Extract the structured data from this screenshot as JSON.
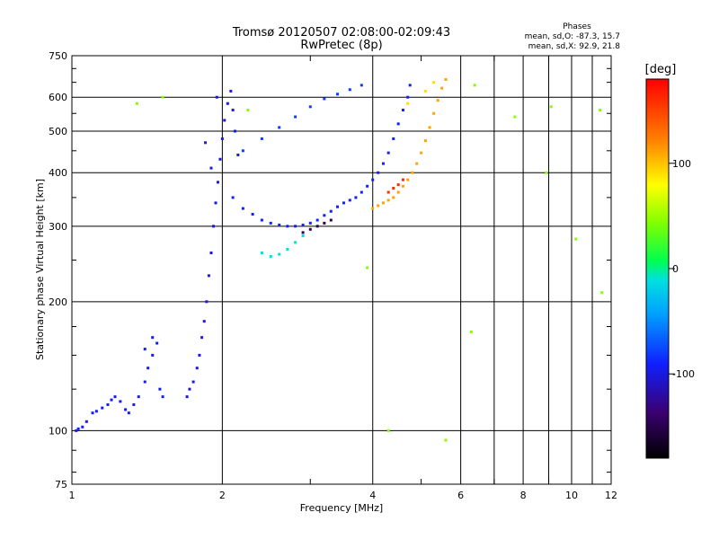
{
  "chart_data": {
    "type": "scatter",
    "title": "Tromsø 20120507 02:08:00-02:09:43",
    "subtitle": "RwPretec (8p)",
    "xlabel": "Frequency [MHz]",
    "ylabel": "Stationary phase Virtual Height [km]",
    "x_scale": "log",
    "y_scale": "log",
    "xlim": [
      1,
      12
    ],
    "ylim": [
      75,
      750
    ],
    "x_ticks": [
      1,
      2,
      4,
      6,
      8,
      10,
      12
    ],
    "x_tick_labels": [
      "1",
      "2",
      "4",
      "6",
      "8",
      "10",
      "12"
    ],
    "y_ticks": [
      75,
      100,
      200,
      300,
      400,
      500,
      600,
      750
    ],
    "y_tick_labels": [
      "75",
      "100",
      "200",
      "300",
      "400",
      "500",
      "600",
      "750"
    ],
    "grid": true,
    "stats": {
      "heading": "Phases",
      "line_O": "mean, sd,O: -87.3, 15.7",
      "line_X": "mean, sd,X: 92.9, 21.8"
    },
    "colorbar": {
      "label": "[deg]",
      "min": -180,
      "max": 180,
      "ticks": [
        100,
        0,
        -100
      ],
      "tick_labels": [
        "100",
        "0",
        "-100"
      ]
    },
    "series": [
      {
        "points": [
          [
            1.02,
            100
          ],
          [
            1.03,
            101
          ],
          [
            1.05,
            102
          ],
          [
            1.07,
            105
          ],
          [
            1.1,
            110
          ],
          [
            1.12,
            111
          ],
          [
            1.15,
            113
          ],
          [
            1.18,
            115
          ],
          [
            1.2,
            118
          ],
          [
            1.22,
            120
          ],
          [
            1.25,
            117
          ],
          [
            1.28,
            112
          ],
          [
            1.3,
            110
          ],
          [
            1.33,
            115
          ],
          [
            1.36,
            120
          ],
          [
            1.4,
            130
          ],
          [
            1.42,
            140
          ],
          [
            1.45,
            150
          ],
          [
            1.48,
            160
          ],
          [
            1.45,
            165
          ],
          [
            1.4,
            155
          ],
          [
            1.5,
            125
          ],
          [
            1.52,
            120
          ]
        ],
        "phase": -95
      },
      {
        "points": [
          [
            1.7,
            120
          ],
          [
            1.72,
            125
          ],
          [
            1.75,
            130
          ],
          [
            1.78,
            140
          ],
          [
            1.8,
            150
          ],
          [
            1.82,
            165
          ],
          [
            1.84,
            180
          ],
          [
            1.86,
            200
          ],
          [
            1.88,
            230
          ],
          [
            1.9,
            260
          ],
          [
            1.92,
            300
          ],
          [
            1.94,
            340
          ],
          [
            1.96,
            380
          ],
          [
            1.98,
            430
          ],
          [
            2.0,
            480
          ],
          [
            2.02,
            530
          ],
          [
            2.05,
            580
          ],
          [
            2.08,
            620
          ],
          [
            2.1,
            560
          ],
          [
            2.12,
            500
          ],
          [
            2.15,
            440
          ],
          [
            1.95,
            600
          ],
          [
            1.85,
            470
          ],
          [
            1.9,
            410
          ]
        ],
        "phase": -100
      },
      {
        "points": [
          [
            2.1,
            350
          ],
          [
            2.2,
            330
          ],
          [
            2.3,
            320
          ],
          [
            2.4,
            310
          ],
          [
            2.5,
            305
          ],
          [
            2.6,
            302
          ],
          [
            2.7,
            300
          ],
          [
            2.8,
            300
          ],
          [
            2.9,
            302
          ],
          [
            3.0,
            305
          ],
          [
            3.1,
            310
          ],
          [
            3.2,
            318
          ],
          [
            3.3,
            325
          ],
          [
            3.4,
            333
          ],
          [
            3.5,
            340
          ],
          [
            3.6,
            345
          ],
          [
            3.7,
            350
          ],
          [
            3.8,
            360
          ],
          [
            3.9,
            372
          ],
          [
            4.0,
            385
          ],
          [
            4.1,
            400
          ],
          [
            4.2,
            420
          ],
          [
            4.3,
            445
          ],
          [
            4.4,
            480
          ],
          [
            4.5,
            520
          ],
          [
            4.6,
            560
          ],
          [
            4.7,
            600
          ],
          [
            4.75,
            640
          ]
        ],
        "phase": -90
      },
      {
        "points": [
          [
            2.4,
            260
          ],
          [
            2.5,
            255
          ],
          [
            2.6,
            258
          ],
          [
            2.7,
            265
          ],
          [
            2.8,
            275
          ],
          [
            2.9,
            285
          ]
        ],
        "phase": -10
      },
      {
        "points": [
          [
            2.2,
            450
          ],
          [
            2.4,
            480
          ],
          [
            2.6,
            510
          ],
          [
            2.8,
            540
          ],
          [
            3.0,
            570
          ],
          [
            3.2,
            595
          ],
          [
            3.4,
            610
          ],
          [
            3.6,
            625
          ],
          [
            3.8,
            640
          ]
        ],
        "phase": -80
      },
      {
        "points": [
          [
            2.9,
            290
          ],
          [
            3.0,
            295
          ],
          [
            3.1,
            300
          ],
          [
            3.2,
            305
          ],
          [
            3.3,
            310
          ]
        ],
        "phase": -150
      },
      {
        "points": [
          [
            4.0,
            330
          ],
          [
            4.1,
            335
          ],
          [
            4.2,
            340
          ],
          [
            4.3,
            345
          ],
          [
            4.4,
            350
          ],
          [
            4.5,
            360
          ],
          [
            4.6,
            372
          ],
          [
            4.7,
            385
          ],
          [
            4.8,
            400
          ],
          [
            4.9,
            420
          ],
          [
            5.0,
            445
          ],
          [
            5.1,
            475
          ],
          [
            5.2,
            510
          ],
          [
            5.3,
            550
          ],
          [
            5.4,
            590
          ],
          [
            5.5,
            630
          ],
          [
            5.6,
            660
          ]
        ],
        "phase": 110
      },
      {
        "points": [
          [
            4.3,
            360
          ],
          [
            4.4,
            368
          ],
          [
            4.5,
            375
          ],
          [
            4.6,
            385
          ]
        ],
        "phase": 160
      },
      {
        "points": [
          [
            4.7,
            580
          ],
          [
            5.1,
            620
          ],
          [
            5.3,
            650
          ]
        ],
        "phase": 90
      },
      {
        "points": [
          [
            1.35,
            580
          ],
          [
            1.52,
            600
          ],
          [
            2.25,
            560
          ],
          [
            6.4,
            640
          ],
          [
            7.7,
            540
          ],
          [
            9.1,
            570
          ],
          [
            10.2,
            280
          ],
          [
            11.4,
            560
          ],
          [
            11.5,
            210
          ],
          [
            6.3,
            170
          ],
          [
            8.9,
            400
          ],
          [
            3.9,
            240
          ],
          [
            4.3,
            100
          ],
          [
            5.6,
            95
          ]
        ],
        "phase": 45
      }
    ]
  }
}
